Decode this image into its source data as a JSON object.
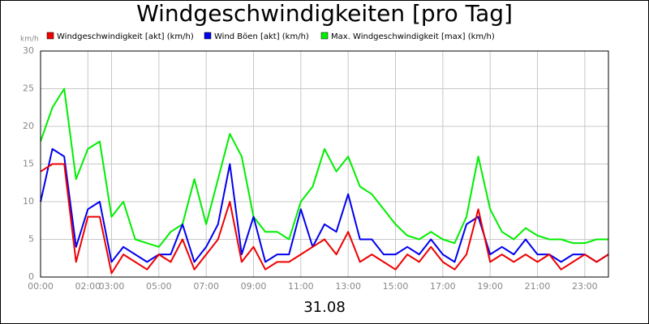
{
  "chart_data": {
    "type": "line",
    "title": "Windgeschwindigkeiten [pro Tag]",
    "y_label": "km/h",
    "x_label": "31.08",
    "x": [
      0,
      0.5,
      1,
      1.5,
      2,
      2.5,
      3,
      3.5,
      4,
      4.5,
      5,
      5.5,
      6,
      6.5,
      7,
      7.5,
      8,
      8.5,
      9,
      9.5,
      10,
      10.5,
      11,
      11.5,
      12,
      12.5,
      13,
      13.5,
      14,
      14.5,
      15,
      15.5,
      16,
      16.5,
      17,
      17.5,
      18,
      18.5,
      19,
      19.5,
      20,
      20.5,
      21,
      21.5,
      22,
      22.5,
      23,
      23.5,
      24
    ],
    "series": [
      {
        "name": "Windgeschwindigkeit [akt] (km/h)",
        "color": "#ee0000",
        "values": [
          14,
          15,
          15,
          2,
          8,
          8,
          0.5,
          3,
          2,
          1,
          3,
          2,
          5,
          1,
          3,
          5,
          10,
          2,
          4,
          1,
          2,
          2,
          3,
          4,
          5,
          3,
          6,
          2,
          3,
          2,
          1,
          3,
          2,
          4,
          2,
          1,
          3,
          9,
          2,
          3,
          2,
          3,
          2,
          3,
          1,
          2,
          3,
          2,
          3
        ]
      },
      {
        "name": "Wind Böen [akt] (km/h)",
        "color": "#0000ee",
        "values": [
          10,
          17,
          16,
          4,
          9,
          10,
          2,
          4,
          3,
          2,
          3,
          3,
          7,
          2,
          4,
          7,
          15,
          3,
          8,
          2,
          3,
          3,
          9,
          4,
          7,
          6,
          11,
          5,
          5,
          3,
          3,
          4,
          3,
          5,
          3,
          2,
          7,
          8,
          3,
          4,
          3,
          5,
          3,
          3,
          2,
          3,
          3,
          2,
          3
        ]
      },
      {
        "name": "Max. Windgeschwindigkeit [max] (km/h)",
        "color": "#00ee00",
        "values": [
          18,
          22.5,
          25,
          13,
          17,
          18,
          8,
          10,
          5,
          4.5,
          4,
          6,
          7,
          13,
          7,
          13,
          19,
          16,
          8,
          6,
          6,
          5,
          10,
          12,
          17,
          14,
          16,
          12,
          11,
          9,
          7,
          5.5,
          5,
          6,
          5,
          4.5,
          8,
          16,
          9,
          6,
          5,
          6.5,
          5.5,
          5,
          5,
          4.5,
          4.5,
          5,
          5
        ]
      }
    ],
    "xlim": [
      0,
      24
    ],
    "xticks": [
      {
        "value": 0,
        "label": "00:00"
      },
      {
        "value": 2,
        "label": "02:00"
      },
      {
        "value": 3,
        "label": "03:00"
      },
      {
        "value": 5,
        "label": "05:00"
      },
      {
        "value": 7,
        "label": "07:00"
      },
      {
        "value": 9,
        "label": "09:00"
      },
      {
        "value": 11,
        "label": "11:00"
      },
      {
        "value": 13,
        "label": "13:00"
      },
      {
        "value": 15,
        "label": "15:00"
      },
      {
        "value": 17,
        "label": "17:00"
      },
      {
        "value": 19,
        "label": "19:00"
      },
      {
        "value": 21,
        "label": "21:00"
      },
      {
        "value": 23,
        "label": "23:00"
      }
    ],
    "ylim": [
      0,
      30
    ],
    "yticks": [
      0,
      5,
      10,
      15,
      20,
      25,
      30
    ],
    "grid": true
  }
}
